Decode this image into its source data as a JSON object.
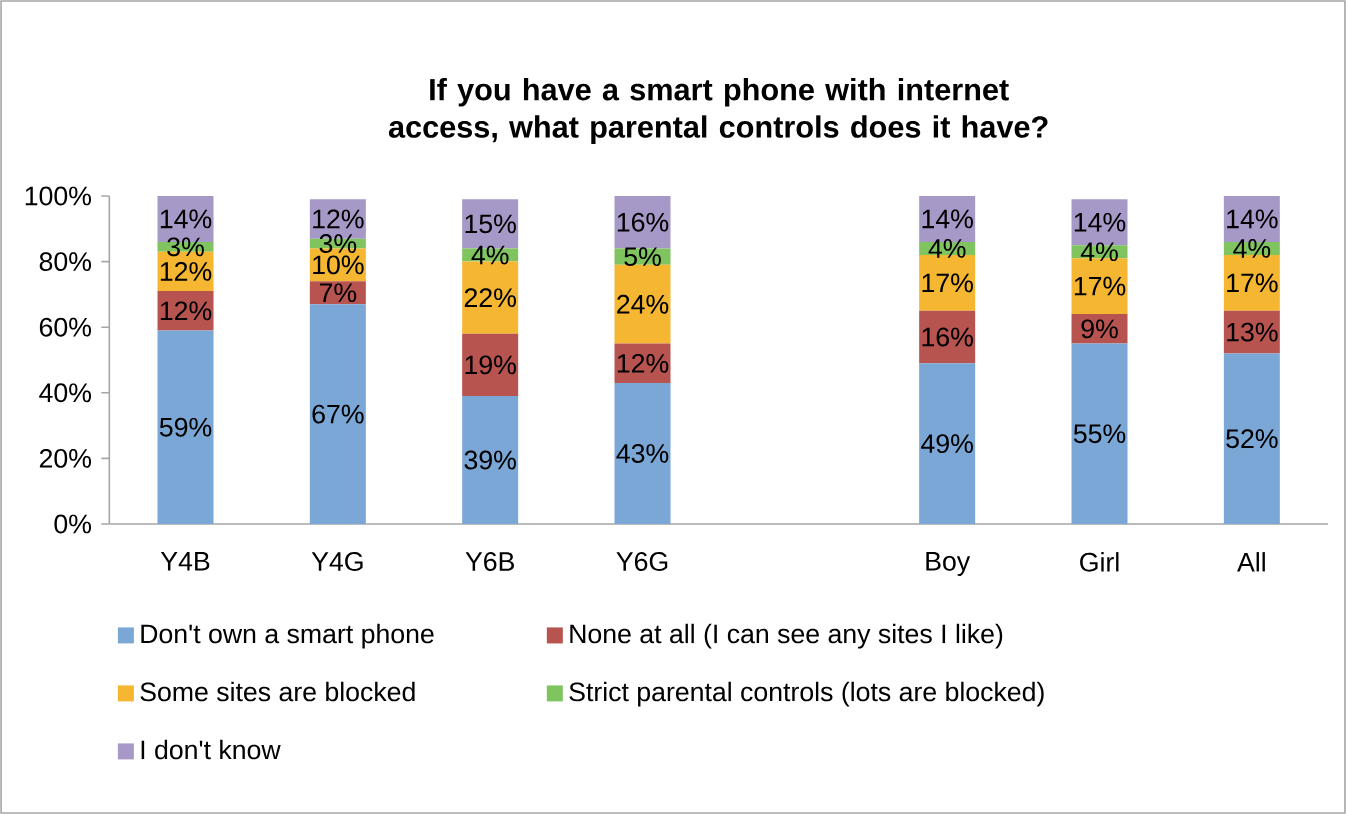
{
  "chart_data": {
    "type": "bar",
    "stacked": true,
    "title": "If you have a smart phone with internet access, what parental controls does it have?",
    "categories": [
      "Y4B",
      "Y4G",
      "Y6B",
      "Y6G",
      null,
      "Boy",
      "Girl",
      "All"
    ],
    "series": [
      {
        "name": "Don't own a smart phone",
        "color": "#7ba7d7",
        "values": [
          59,
          67,
          39,
          43,
          null,
          49,
          55,
          52
        ],
        "value_labels": [
          "59%",
          "67%",
          "39%",
          "43%",
          null,
          "49%",
          "55%",
          "52%"
        ]
      },
      {
        "name": "None at all (I can see any sites I like)",
        "color": "#b85450",
        "values": [
          12,
          7,
          19,
          12,
          null,
          16,
          9,
          13
        ],
        "value_labels": [
          "12%",
          "7%",
          "19%",
          "12%",
          null,
          "16%",
          "9%",
          "13%"
        ]
      },
      {
        "name": "Some sites are blocked",
        "color": "#f5b731",
        "values": [
          12,
          10,
          22,
          24,
          null,
          17,
          17,
          17
        ],
        "value_labels": [
          "12%",
          "10%",
          "22%",
          "24%",
          null,
          "17%",
          "17%",
          "17%"
        ]
      },
      {
        "name": "Strict parental controls (lots are blocked)",
        "color": "#7fc45f",
        "values": [
          3,
          3,
          4,
          5,
          null,
          4,
          4,
          4
        ],
        "value_labels": [
          "3%",
          "3%",
          "4%",
          "5%",
          null,
          "4%",
          "4%",
          "4%"
        ]
      },
      {
        "name": "I don't know",
        "color": "#a699c7",
        "values": [
          14,
          12,
          15,
          16,
          null,
          14,
          14,
          14
        ],
        "value_labels": [
          "14%",
          "12%",
          "15%",
          "16%",
          null,
          "14%",
          "14%",
          "14%"
        ]
      }
    ],
    "ylim": [
      0,
      100
    ],
    "yticks": [
      {
        "value": 0,
        "label": "0%"
      },
      {
        "value": 20,
        "label": "20%"
      },
      {
        "value": 40,
        "label": "40%"
      },
      {
        "value": 60,
        "label": "60%"
      },
      {
        "value": 80,
        "label": "80%"
      },
      {
        "value": 100,
        "label": "100%"
      }
    ],
    "legend": "bottom"
  }
}
